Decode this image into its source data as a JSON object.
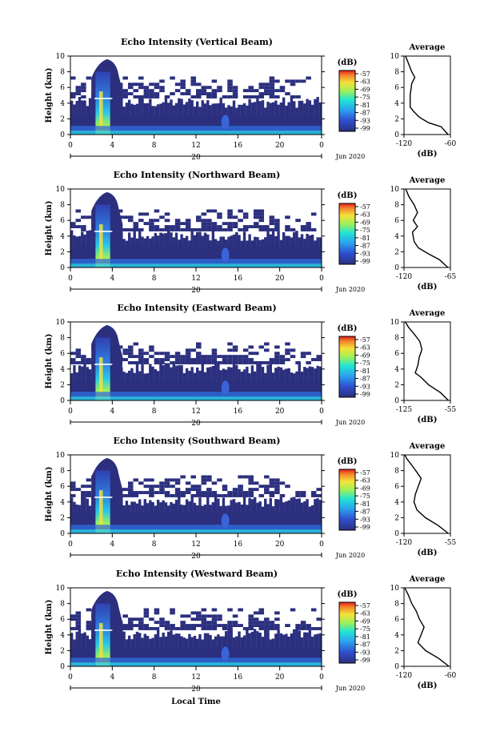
{
  "xlabel": "Local Time",
  "date_month": "Jun 2020",
  "x_ticks": [
    "0",
    "4",
    "8",
    "12",
    "16",
    "20",
    "0"
  ],
  "x_ticks_day": "20",
  "y_label": "Height (km)",
  "y_ticks": [
    "0",
    "2",
    "4",
    "6",
    "8",
    "10"
  ],
  "colorbar_unit": "(dB)",
  "colorbar_ticks": [
    "-57",
    "-63",
    "-69",
    "-75",
    "-81",
    "-87",
    "-93",
    "-99"
  ],
  "avg_title": "Average",
  "avg_unit": "(dB)",
  "colors": {
    "background_echo": "#2b2f7e",
    "axis": "#000000"
  },
  "chart_data": [
    {
      "type": "heatmap",
      "title": "Echo Intensity (Vertical Beam)",
      "xlim": [
        0,
        24
      ],
      "ylim": [
        0,
        10
      ],
      "clim": [
        -99,
        -57
      ],
      "avg_xticks": [
        "-120",
        "-60"
      ],
      "avg_xlim": [
        -120,
        -60
      ],
      "avg_profile": [
        [
          -63,
          0
        ],
        [
          -72,
          1
        ],
        [
          -88,
          1.5
        ],
        [
          -100,
          2.2
        ],
        [
          -108,
          3
        ],
        [
          -112,
          3.5
        ],
        [
          -112,
          5
        ],
        [
          -110,
          6.5
        ],
        [
          -106,
          7.3
        ],
        [
          -110,
          8
        ],
        [
          -114,
          9
        ],
        [
          -118,
          10
        ]
      ]
    },
    {
      "type": "heatmap",
      "title": "Echo Intensity (Northward Beam)",
      "xlim": [
        0,
        24
      ],
      "ylim": [
        0,
        10
      ],
      "clim": [
        -99,
        -57
      ],
      "avg_xticks": [
        "-120",
        "-65"
      ],
      "avg_xlim": [
        -120,
        -65
      ],
      "avg_profile": [
        [
          -68,
          0
        ],
        [
          -78,
          1
        ],
        [
          -92,
          1.8
        ],
        [
          -103,
          2.5
        ],
        [
          -108,
          3.3
        ],
        [
          -110,
          4.5
        ],
        [
          -104,
          5.2
        ],
        [
          -109,
          6
        ],
        [
          -104,
          7
        ],
        [
          -108,
          8
        ],
        [
          -114,
          9
        ],
        [
          -118,
          10
        ]
      ]
    },
    {
      "type": "heatmap",
      "title": "Echo Intensity (Eastward Beam)",
      "xlim": [
        0,
        24
      ],
      "ylim": [
        0,
        10
      ],
      "clim": [
        -99,
        -57
      ],
      "avg_xticks": [
        "-125",
        "-55"
      ],
      "avg_xlim": [
        -125,
        -55
      ],
      "avg_profile": [
        [
          -58,
          0
        ],
        [
          -70,
          1
        ],
        [
          -88,
          2
        ],
        [
          -100,
          3
        ],
        [
          -108,
          3.5
        ],
        [
          -104,
          4.5
        ],
        [
          -102,
          5.5
        ],
        [
          -98,
          6.5
        ],
        [
          -101,
          7.5
        ],
        [
          -110,
          8.5
        ],
        [
          -118,
          9.3
        ],
        [
          -123,
          10
        ]
      ]
    },
    {
      "type": "heatmap",
      "title": "Echo Intensity (Southward Beam)",
      "xlim": [
        0,
        24
      ],
      "ylim": [
        0,
        10
      ],
      "clim": [
        -99,
        -57
      ],
      "avg_xticks": [
        "-120",
        "-55"
      ],
      "avg_xlim": [
        -120,
        -55
      ],
      "avg_profile": [
        [
          -58,
          0
        ],
        [
          -72,
          1
        ],
        [
          -90,
          2
        ],
        [
          -102,
          3
        ],
        [
          -106,
          4
        ],
        [
          -104,
          5
        ],
        [
          -100,
          6
        ],
        [
          -96,
          7
        ],
        [
          -102,
          7.8
        ],
        [
          -110,
          8.8
        ],
        [
          -116,
          9.5
        ],
        [
          -120,
          10
        ]
      ]
    },
    {
      "type": "heatmap",
      "title": "Echo Intensity (Westward Beam)",
      "xlim": [
        0,
        24
      ],
      "ylim": [
        0,
        10
      ],
      "clim": [
        -99,
        -57
      ],
      "avg_xticks": [
        "-120",
        "-60"
      ],
      "avg_xlim": [
        -120,
        -60
      ],
      "avg_profile": [
        [
          -62,
          0
        ],
        [
          -75,
          1
        ],
        [
          -92,
          2
        ],
        [
          -102,
          3
        ],
        [
          -98,
          4
        ],
        [
          -94,
          5
        ],
        [
          -100,
          6
        ],
        [
          -104,
          7
        ],
        [
          -110,
          8
        ],
        [
          -114,
          9
        ],
        [
          -119,
          10
        ]
      ]
    }
  ]
}
